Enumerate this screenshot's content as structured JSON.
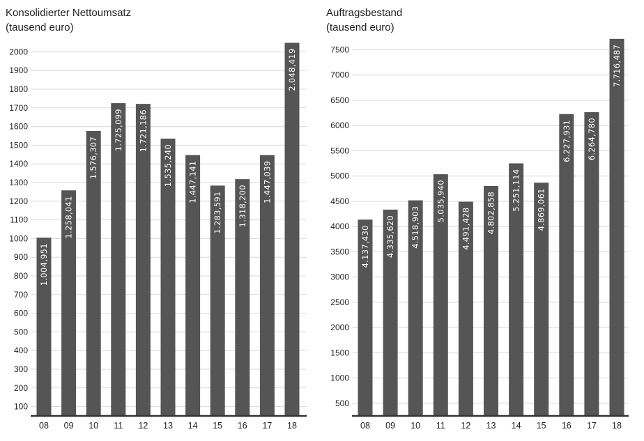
{
  "chart_data": [
    {
      "type": "bar",
      "title": "Konsolidierter Nettoumsatz",
      "subtitle": "(tausend euro)",
      "categories": [
        "08",
        "09",
        "10",
        "11",
        "12",
        "13",
        "14",
        "15",
        "16",
        "17",
        "18"
      ],
      "values": [
        1004.951,
        1258.041,
        1576.307,
        1725.099,
        1721.186,
        1535.24,
        1447.141,
        1283.591,
        1318.2,
        1447.039,
        2048.419
      ],
      "data_labels": [
        "1.004,951",
        "1.258,041",
        "1.576,307",
        "1.725,099",
        "1.721,186",
        "1.535,240",
        "1.447,141",
        "1.283,591",
        "1.318,200",
        "1.447,039",
        "2.048,419"
      ],
      "ylim": [
        50,
        2050
      ],
      "yticks": [
        100,
        200,
        300,
        400,
        500,
        600,
        700,
        800,
        900,
        1000,
        1100,
        1200,
        1300,
        1400,
        1500,
        1600,
        1700,
        1800,
        1900,
        2000
      ],
      "color": "#555555",
      "grid": true
    },
    {
      "type": "bar",
      "title": "Auftragsbestand",
      "subtitle": "(tausend euro)",
      "categories": [
        "08",
        "09",
        "10",
        "11",
        "12",
        "13",
        "14",
        "15",
        "16",
        "17",
        "18"
      ],
      "values": [
        4137.43,
        4335.62,
        4518.903,
        5035.94,
        4491.428,
        4802.858,
        5251.114,
        4869.061,
        6227.931,
        6264.78,
        7716.487
      ],
      "data_labels": [
        "4.137,430",
        "4.335,620",
        "4.518,903",
        "5.035,940",
        "4.491,428",
        "4.802,858",
        "5.251,114",
        "4.869,061",
        "6.227,931",
        "6.264,780",
        "7.716,487"
      ],
      "ylim": [
        250,
        7700
      ],
      "yticks": [
        500,
        1000,
        1500,
        2000,
        2500,
        3000,
        3500,
        4000,
        4500,
        5000,
        5500,
        6000,
        6500,
        7000,
        7500
      ],
      "color": "#555555",
      "grid": true
    }
  ]
}
